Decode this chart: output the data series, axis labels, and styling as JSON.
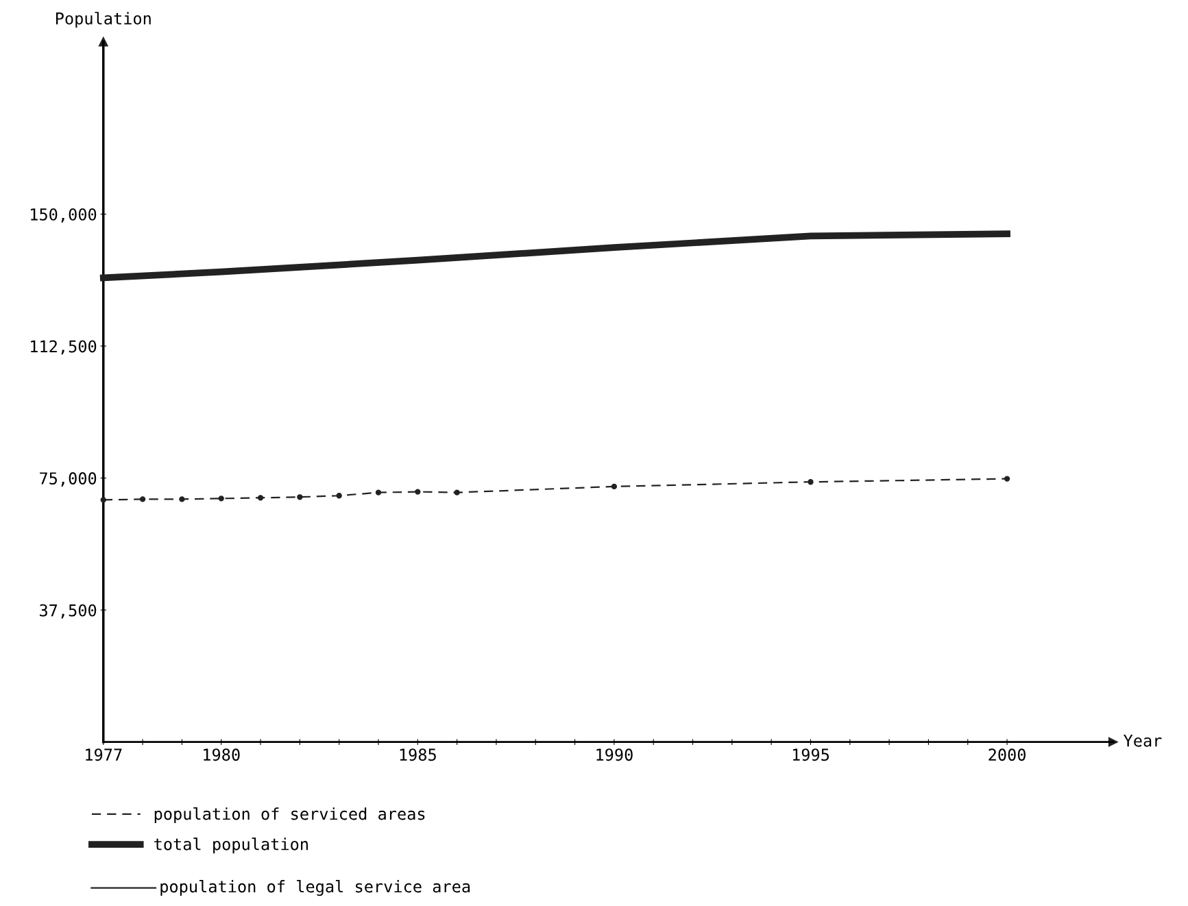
{
  "chart_data": {
    "type": "line",
    "ylabel": "Population",
    "xlabel": "Year",
    "x": [
      1977,
      1978,
      1979,
      1980,
      1981,
      1982,
      1983,
      1984,
      1985,
      1986,
      1990,
      1995,
      2000
    ],
    "series": [
      {
        "name": "population of serviced areas",
        "color": "#222222",
        "line_style": "dashed",
        "marker": "circle",
        "values": [
          68800,
          69000,
          69000,
          69200,
          69400,
          69600,
          70000,
          70900,
          71100,
          70900,
          72600,
          73900,
          74800
        ]
      },
      {
        "name": "total population",
        "color": "#222222",
        "line_style": "solid",
        "marker": "none",
        "x": [
          1977,
          1980,
          1985,
          1990,
          1995,
          2000
        ],
        "values": [
          131900,
          133600,
          136900,
          140500,
          143800,
          144400
        ]
      }
    ],
    "annotations": [
      "population of legal service area"
    ],
    "xlim": [
      1977,
      2002.7
    ],
    "ylim": [
      0,
      199000
    ],
    "xticks": [
      1977,
      {
        "value": 1978,
        "label": null
      },
      {
        "value": 1979,
        "label": null
      },
      1980,
      {
        "value": 1981,
        "label": null
      },
      {
        "value": 1982,
        "label": null
      },
      {
        "value": 1983,
        "label": null
      },
      {
        "value": 1984,
        "label": null
      },
      1985,
      {
        "value": 1986,
        "label": null
      },
      {
        "value": 1987,
        "label": null
      },
      {
        "value": 1988,
        "label": null
      },
      {
        "value": 1989,
        "label": null
      },
      1990,
      {
        "value": 1991,
        "label": null
      },
      {
        "value": 1992,
        "label": null
      },
      {
        "value": 1993,
        "label": null
      },
      {
        "value": 1994,
        "label": null
      },
      1995,
      {
        "value": 1996,
        "label": null
      },
      {
        "value": 1997,
        "label": null
      },
      {
        "value": 1998,
        "label": null
      },
      {
        "value": 1999,
        "label": null
      },
      2000
    ],
    "yticks": [
      {
        "value": 37500,
        "label": "37,500"
      },
      {
        "value": 75000,
        "label": "75,000"
      },
      {
        "value": 112500,
        "label": "112,500"
      },
      {
        "value": 150000,
        "label": "150,000"
      }
    ],
    "grid": false,
    "legend": "bottom"
  }
}
